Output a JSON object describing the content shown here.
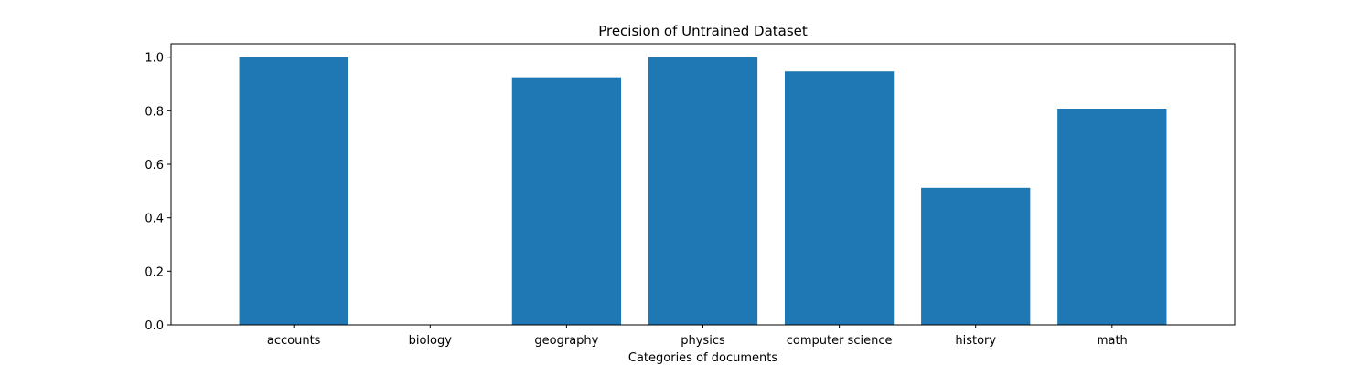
{
  "chart_data": {
    "type": "bar",
    "title": "Precision of Untrained Dataset",
    "xlabel": "Categories of documents",
    "ylabel": "",
    "categories": [
      "accounts",
      "biology",
      "geography",
      "physics",
      "computer science",
      "history",
      "math"
    ],
    "values": [
      1.0,
      0.0,
      0.925,
      1.0,
      0.947,
      0.512,
      0.808
    ],
    "ylim": [
      0,
      1.05
    ],
    "yticks": [
      "0.0",
      "0.2",
      "0.4",
      "0.6",
      "0.8",
      "1.0"
    ],
    "grid": false,
    "bar_color": "#1f77b4"
  }
}
